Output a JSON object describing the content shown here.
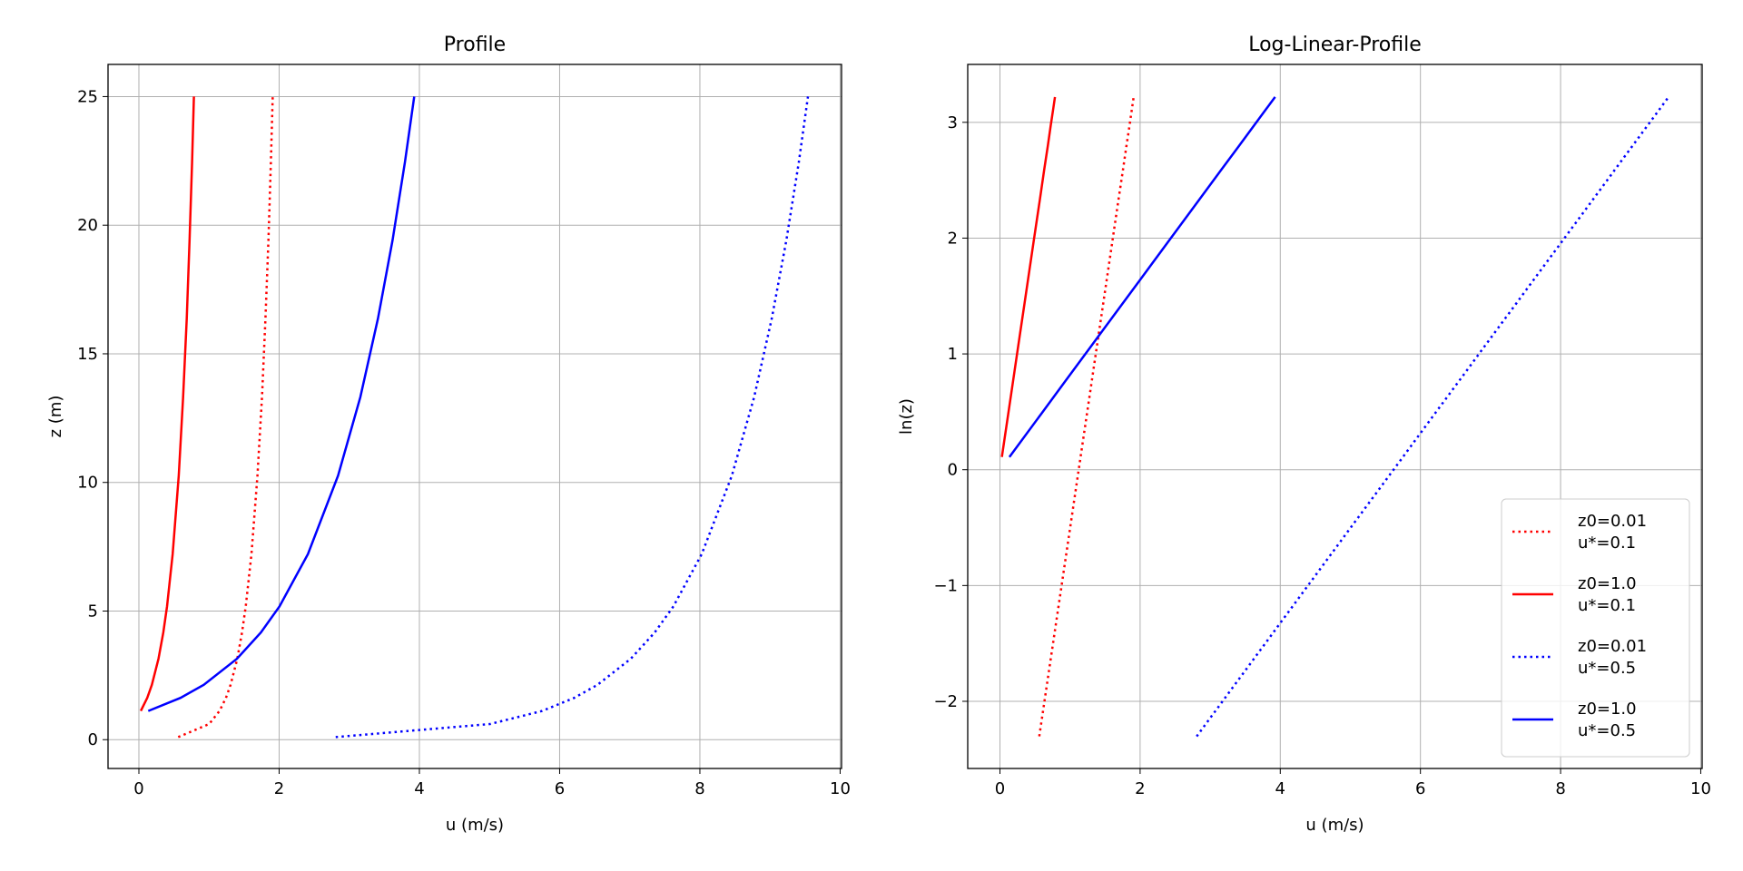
{
  "chart_data": [
    {
      "type": "line",
      "title": "Profile",
      "xlabel": "u (m/s)",
      "ylabel": "z (m)",
      "xlim": [
        -0.44,
        10.02
      ],
      "ylim": [
        -1.12,
        26.25
      ],
      "grid": true,
      "xticks": [
        0,
        2,
        4,
        6,
        8,
        10
      ],
      "xtick_labels": [
        "0",
        "2",
        "4",
        "6",
        "8",
        "10"
      ],
      "yticks": [
        0,
        5,
        10,
        15,
        20,
        25
      ],
      "ytick_labels": [
        "0",
        "5",
        "10",
        "15",
        "20",
        "25"
      ],
      "y_transform": "none"
    },
    {
      "type": "line",
      "title": "Log-Linear-Profile",
      "xlabel": "u (m/s)",
      "ylabel": "ln(z)",
      "xlim": [
        -0.46,
        10.02
      ],
      "ylim": [
        -2.58,
        3.5
      ],
      "grid": true,
      "xticks": [
        0,
        2,
        4,
        6,
        8,
        10
      ],
      "xtick_labels": [
        "0",
        "2",
        "4",
        "6",
        "8",
        "10"
      ],
      "yticks": [
        -2,
        -1,
        0,
        1,
        2,
        3
      ],
      "ytick_labels": [
        "−2",
        "−1",
        "0",
        "1",
        "2",
        "3"
      ],
      "y_transform": "ln",
      "legend": "lower-right"
    }
  ],
  "series": [
    {
      "name": "z0=0.01 u*=0.1",
      "legend_lines": [
        "z0=0.01",
        "u*=0.1"
      ],
      "color": "#ff0000",
      "style": "dotted",
      "z": [
        0.1,
        0.608,
        1.116,
        1.625,
        2.133,
        3.149,
        4.166,
        5.182,
        7.215,
        10.265,
        13.314,
        16.363,
        19.412,
        22.461,
        25.0
      ],
      "u": [
        0.561,
        1.002,
        1.15,
        1.242,
        1.308,
        1.403,
        1.471,
        1.524,
        1.605,
        1.691,
        1.755,
        1.805,
        1.847,
        1.882,
        1.908
      ]
    },
    {
      "name": "z0=1.0 u*=0.1",
      "legend_lines": [
        "z0=1.0",
        "u*=0.1"
      ],
      "color": "#ff0000",
      "style": "solid",
      "z": [
        1.116,
        1.625,
        2.133,
        3.149,
        4.166,
        5.182,
        7.215,
        10.265,
        13.314,
        16.363,
        19.412,
        22.461,
        25.0
      ],
      "u": [
        0.027,
        0.119,
        0.185,
        0.28,
        0.348,
        0.401,
        0.482,
        0.568,
        0.631,
        0.682,
        0.723,
        0.759,
        0.785
      ]
    },
    {
      "name": "z0=0.01 u*=0.5",
      "legend_lines": [
        "z0=0.01",
        "u*=0.5"
      ],
      "color": "#0000ff",
      "style": "dotted",
      "z": [
        0.1,
        0.608,
        1.116,
        1.625,
        2.133,
        3.149,
        4.166,
        5.182,
        7.215,
        10.265,
        13.314,
        16.363,
        19.412,
        22.461,
        25.0
      ],
      "u": [
        2.807,
        5.008,
        5.75,
        6.208,
        6.54,
        7.015,
        7.356,
        7.622,
        8.026,
        8.456,
        8.773,
        9.024,
        9.233,
        9.411,
        9.541
      ]
    },
    {
      "name": "z0=1.0 u*=0.5",
      "legend_lines": [
        "z0=1.0",
        "u*=0.5"
      ],
      "color": "#0000ff",
      "style": "solid",
      "z": [
        1.116,
        1.625,
        2.133,
        3.149,
        4.166,
        5.182,
        7.215,
        10.265,
        13.314,
        16.363,
        19.412,
        22.461,
        25.0
      ],
      "u": [
        0.134,
        0.593,
        0.924,
        1.399,
        1.74,
        2.006,
        2.41,
        2.84,
        3.157,
        3.409,
        3.617,
        3.795,
        3.926
      ]
    }
  ]
}
